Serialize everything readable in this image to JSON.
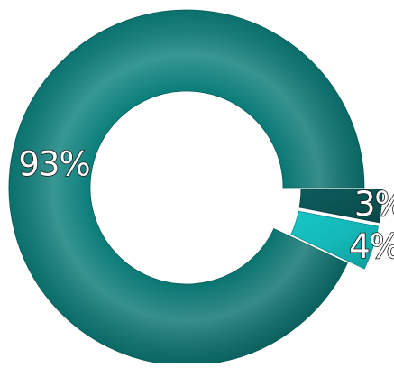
{
  "chart_data": {
    "type": "pie",
    "variant": "donut",
    "title": "",
    "legend": "none",
    "slices": [
      {
        "label": "93%",
        "value": 93,
        "color": "#0c7c78",
        "exploded": false
      },
      {
        "label": "4%",
        "value": 4,
        "color": "#14b8b8",
        "exploded": true
      },
      {
        "label": "3%",
        "value": 3,
        "color": "#0b5454",
        "exploded": true
      }
    ]
  }
}
